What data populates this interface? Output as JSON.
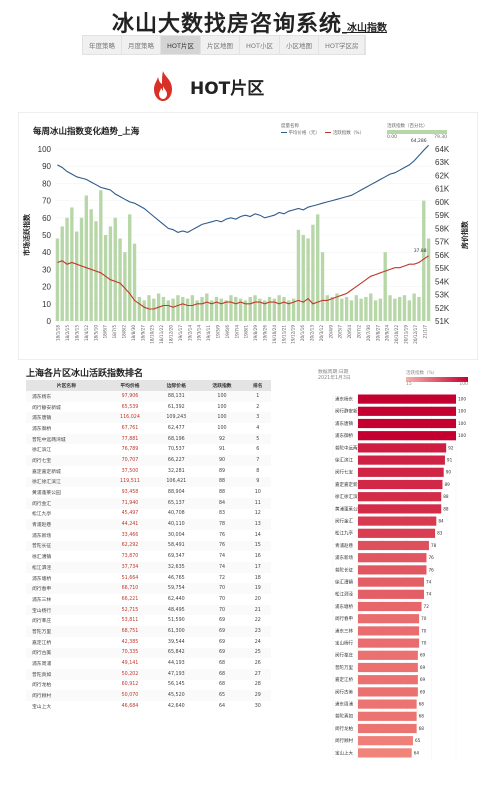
{
  "header": {
    "title": "冰山大数找房咨询系统",
    "subtitle": "_冰山指数"
  },
  "tabs": [
    "年度策略",
    "月度策略",
    "HOT片区",
    "片区地图",
    "HOT小区",
    "小区地图",
    "HOT学区房"
  ],
  "active_tab": 2,
  "hot": {
    "icon": "flame-icon",
    "label": "HOT片区",
    "color": "#d93025"
  },
  "colors": {
    "price": "#2e5b8a",
    "activity": "#c0392b",
    "bar": "#b7d7a8",
    "rank_low": "#f0837a",
    "rank_high": "#c40030"
  },
  "chart_data": [
    {
      "type": "line",
      "title": "每周冰山指数变化趋势_上海",
      "legend": {
        "group_label": "度量名称",
        "series_labels": [
          "平均价格（元）",
          "活跃指数（%）"
        ],
        "bar_label": "活跃指数（百分比）",
        "bar_min": "0.00",
        "bar_max": "79.30"
      },
      "ylabel_left": "市场活跃指数",
      "ylabel_right": "房价指数",
      "ylim_left": [
        0,
        100
      ],
      "ylim_right": [
        51000,
        64000
      ],
      "yticks_left": [
        "100",
        "90",
        "80",
        "70",
        "60",
        "50",
        "40",
        "30",
        "20",
        "10",
        "0"
      ],
      "yticks_right": [
        "64K",
        "63K",
        "62K",
        "61K",
        "60K",
        "59K",
        "58K",
        "57K",
        "56K",
        "55K",
        "54K",
        "53K",
        "52K",
        "51K"
      ],
      "x_dates": [
        "18/1/18",
        "18/2/1",
        "18/2/22",
        "18/3/8",
        "18/3/22",
        "18/4/5",
        "18/4/19",
        "18/5/3",
        "18/5/17",
        "18/5/31",
        "18/6/14",
        "18/6/28",
        "18/7/12",
        "18/7/26",
        "18/8/9",
        "18/8/23",
        "18/9/6",
        "18/9/20",
        "18/10/4",
        "18/10/18",
        "18/11/1",
        "18/11/15",
        "18/11/29",
        "18/12/13",
        "18/12/27",
        "19/1/10",
        "19/1/24",
        "19/2/7",
        "19/2/21",
        "19/3/7",
        "19/3/21",
        "19/4/4",
        "19/4/18",
        "19/5/2",
        "19/5/16",
        "19/5/30",
        "19/6/13",
        "19/6/27",
        "19/7/11",
        "19/7/25",
        "19/8/8",
        "19/8/22",
        "19/9/5",
        "19/9/19",
        "19/10/3",
        "19/10/17",
        "19/10/31",
        "19/11/14",
        "19/11/28",
        "19/12/12",
        "19/12/26",
        "20/1/9",
        "20/1/23",
        "20/2/6",
        "20/2/20",
        "20/3/5",
        "20/3/19",
        "20/4/2",
        "20/4/16",
        "20/4/30",
        "20/5/14",
        "20/5/28",
        "20/6/11",
        "20/6/25",
        "20/7/9",
        "20/7/23",
        "20/8/6",
        "20/8/20",
        "20/9/3",
        "20/9/17",
        "20/10/1",
        "20/10/15",
        "20/10/29",
        "20/11/12",
        "20/11/26",
        "20/12/10",
        "20/12/24",
        "21/1/7"
      ],
      "x_tick_labels": [
        "18/1/18",
        "18/2/15",
        "18/3/15",
        "18/4/12",
        "18/5/10",
        "18/6/7",
        "18/7/5",
        "18/8/2",
        "18/8/30",
        "18/9/27",
        "18/10/25",
        "18/11/22",
        "18/12/20",
        "19/1/17",
        "19/2/14",
        "19/3/14",
        "19/4/11",
        "19/5/9",
        "19/6/6",
        "19/7/4",
        "19/8/1",
        "19/8/29",
        "19/9/26",
        "19/10/24",
        "19/11/21",
        "19/12/19",
        "20/1/16",
        "20/2/13",
        "20/3/12",
        "20/4/9",
        "20/5/7",
        "20/6/4",
        "20/7/2",
        "20/7/30",
        "20/8/27",
        "20/9/24",
        "20/10/22",
        "20/11/19",
        "20/12/17",
        "21/1/7"
      ],
      "series": [
        {
          "name": "平均价格（元）",
          "axis": "right",
          "annotation": "64,286",
          "values": [
            62800,
            62600,
            62300,
            62100,
            61900,
            61800,
            61700,
            61500,
            61300,
            61100,
            61000,
            60900,
            60600,
            60400,
            60200,
            60000,
            59900,
            59700,
            59500,
            59200,
            58900,
            58600,
            58300,
            58000,
            57900,
            57700,
            57800,
            57700,
            57900,
            58100,
            58300,
            58400,
            58500,
            58600,
            58500,
            58700,
            58800,
            58700,
            58900,
            59000,
            58900,
            59100,
            59000,
            58800,
            58900,
            59000,
            59200,
            59100,
            59300,
            59400,
            59500,
            59400,
            59600,
            59700,
            59800,
            59900,
            60000,
            60100,
            60200,
            60300,
            60400,
            60500,
            60700,
            60900,
            61100,
            61300,
            61500,
            61700,
            61900,
            62100,
            62200,
            62400,
            62600,
            62800,
            63100,
            63500,
            63900,
            64286
          ]
        },
        {
          "name": "活跃指数（%）",
          "axis": "left",
          "annotation": "37.88",
          "values": [
            34,
            35,
            33,
            34,
            33,
            32,
            31,
            30,
            29,
            28,
            26,
            24,
            23,
            22,
            19,
            16,
            12,
            10,
            8,
            7,
            7,
            8,
            9,
            9,
            8,
            9,
            10,
            9,
            9,
            10,
            10,
            11,
            10,
            11,
            10,
            11,
            11,
            10,
            11,
            10,
            10,
            11,
            11,
            10,
            11,
            11,
            10,
            11,
            10,
            11,
            12,
            11,
            13,
            10,
            11,
            12,
            12,
            13,
            14,
            15,
            16,
            18,
            20,
            22,
            24,
            26,
            27,
            28,
            29,
            30,
            31,
            31,
            32,
            33,
            33,
            34,
            36,
            37.88
          ]
        },
        {
          "name": "活跃指数（百分比）",
          "type": "bar",
          "axis": "left",
          "values": [
            48,
            55,
            60,
            66,
            52,
            60,
            73,
            65,
            58,
            76,
            50,
            55,
            60,
            48,
            40,
            62,
            45,
            14,
            12,
            15,
            13,
            16,
            14,
            12,
            13,
            15,
            14,
            13,
            15,
            12,
            14,
            16,
            12,
            14,
            13,
            12,
            15,
            14,
            13,
            12,
            14,
            15,
            13,
            12,
            14,
            13,
            15,
            14,
            12,
            13,
            53,
            50,
            48,
            56,
            62,
            40,
            15,
            14,
            16,
            13,
            14,
            12,
            15,
            13,
            14,
            16,
            12,
            13,
            40,
            15,
            13,
            14,
            15,
            12,
            16,
            14,
            70,
            48
          ]
        }
      ]
    },
    {
      "type": "bar",
      "title": "上海各片区冰山活跃指数排名",
      "legend": {
        "title": "数据周期:日期",
        "period": "2021年1月3日",
        "scale_label": "活跃指数（%）",
        "scale_min": "15",
        "scale_max": "100"
      },
      "categories": [
        "浦东杨东",
        "闵行静安新城",
        "浦东唐镇",
        "浦东御桥",
        "普陀中远两湾城",
        "徐汇滨江",
        "闵行七宝",
        "嘉定嘉定新城",
        "徐汇徐汇滨江",
        "黄浦蓬莱公园",
        "闵行金汇",
        "松江九亭",
        "青浦赵巷",
        "浦东新场",
        "普陀长征",
        "徐汇漕镇",
        "松江泗泾",
        "浦东塘桥",
        "闵行春申",
        "浦东三林",
        "宝山杨行",
        "闵行莘庄",
        "普陀万里",
        "嘉定江桥",
        "闵行古美",
        "浦东周浦",
        "普陀真如",
        "闵行龙柏",
        "闵行顾村",
        "宝山上大"
      ],
      "values": [
        100,
        100,
        100,
        100,
        92,
        91,
        90,
        89,
        88,
        88,
        84,
        83,
        78,
        76,
        76,
        74,
        74,
        72,
        70,
        70,
        70,
        69,
        69,
        69,
        69,
        68,
        68,
        68,
        65,
        64
      ],
      "xlim": [
        0,
        100
      ],
      "xticks": [
        "0",
        "20",
        "40",
        "60",
        "80",
        "100"
      ]
    }
  ],
  "table": {
    "columns": [
      "片区名称",
      "平均价格",
      "边际价格",
      "活跃指数",
      "排名"
    ],
    "rows": [
      [
        "浦东杨东",
        "97,906",
        "88,131",
        "100",
        "1"
      ],
      [
        "闵行静安新城",
        "65,539",
        "61,392",
        "100",
        "2"
      ],
      [
        "浦东唐镇",
        "116,024",
        "109,243",
        "100",
        "3"
      ],
      [
        "浦东御桥",
        "67,761",
        "62,477",
        "100",
        "4"
      ],
      [
        "普陀中远两湾城",
        "77,881",
        "68,196",
        "92",
        "5"
      ],
      [
        "徐汇滨江",
        "76,789",
        "70,537",
        "91",
        "6"
      ],
      [
        "闵行七宝",
        "70,707",
        "66,227",
        "90",
        "7"
      ],
      [
        "嘉定嘉定新城",
        "37,500",
        "32,281",
        "89",
        "8"
      ],
      [
        "徐汇徐汇滨江",
        "119,511",
        "106,421",
        "88",
        "9"
      ],
      [
        "黄浦蓬莱公园",
        "93,458",
        "88,904",
        "88",
        "10"
      ],
      [
        "闵行金汇",
        "71,940",
        "65,137",
        "84",
        "11"
      ],
      [
        "松江九亭",
        "45,497",
        "40,708",
        "83",
        "12"
      ],
      [
        "青浦赵巷",
        "44,241",
        "40,110",
        "78",
        "13"
      ],
      [
        "浦东新场",
        "33,466",
        "30,004",
        "76",
        "14"
      ],
      [
        "普陀长征",
        "62,292",
        "58,491",
        "76",
        "15"
      ],
      [
        "徐汇漕镇",
        "73,870",
        "69,347",
        "74",
        "16"
      ],
      [
        "松江泗泾",
        "37,734",
        "32,635",
        "74",
        "17"
      ],
      [
        "浦东塘桥",
        "51,664",
        "46,765",
        "72",
        "18"
      ],
      [
        "闵行春申",
        "66,710",
        "59,754",
        "70",
        "19"
      ],
      [
        "浦东三林",
        "66,221",
        "62,440",
        "70",
        "20"
      ],
      [
        "宝山杨行",
        "52,715",
        "48,495",
        "70",
        "21"
      ],
      [
        "闵行莘庄",
        "53,811",
        "51,590",
        "69",
        "22"
      ],
      [
        "普陀万里",
        "68,751",
        "61,300",
        "69",
        "23"
      ],
      [
        "嘉定江桥",
        "42,385",
        "39,544",
        "69",
        "24"
      ],
      [
        "闵行古美",
        "70,335",
        "65,842",
        "69",
        "25"
      ],
      [
        "浦东周浦",
        "49,141",
        "44,193",
        "68",
        "26"
      ],
      [
        "普陀真如",
        "50,202",
        "47,193",
        "68",
        "27"
      ],
      [
        "闵行龙柏",
        "60,912",
        "56,145",
        "68",
        "28"
      ],
      [
        "闵行顾村",
        "50,070",
        "45,520",
        "65",
        "29"
      ],
      [
        "宝山上大",
        "46,684",
        "42,640",
        "64",
        "30"
      ]
    ]
  }
}
